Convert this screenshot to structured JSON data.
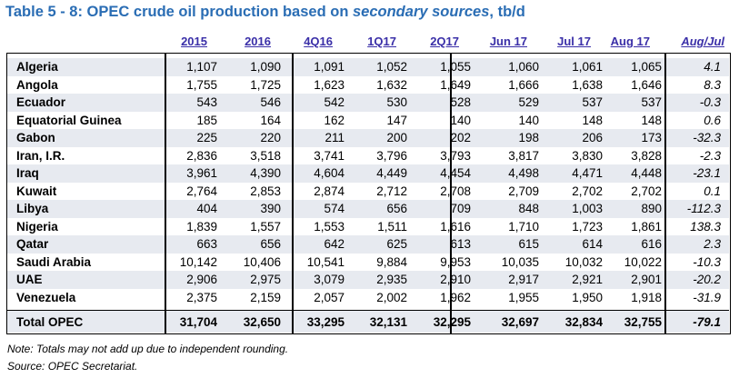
{
  "title": {
    "prefix": "Table 5 - 8: OPEC crude oil production based on ",
    "emph": "secondary sources",
    "suffix": ", tb/d"
  },
  "columns": [
    "2015",
    "2016",
    "4Q16",
    "1Q17",
    "2Q17",
    "Jun 17",
    "Jul 17",
    "Aug 17",
    "Aug/Jul"
  ],
  "rows": [
    {
      "country": "Algeria",
      "values": [
        "1,107",
        "1,090",
        "1,091",
        "1,052",
        "1,055",
        "1,060",
        "1,061",
        "1,065"
      ],
      "change": "4.1"
    },
    {
      "country": "Angola",
      "values": [
        "1,755",
        "1,725",
        "1,623",
        "1,632",
        "1,649",
        "1,666",
        "1,638",
        "1,646"
      ],
      "change": "8.3"
    },
    {
      "country": "Ecuador",
      "values": [
        "543",
        "546",
        "542",
        "530",
        "528",
        "529",
        "537",
        "537"
      ],
      "change": "-0.3"
    },
    {
      "country": "Equatorial Guinea",
      "values": [
        "185",
        "164",
        "162",
        "147",
        "140",
        "140",
        "148",
        "148"
      ],
      "change": "0.6"
    },
    {
      "country": "Gabon",
      "values": [
        "225",
        "220",
        "211",
        "200",
        "202",
        "198",
        "206",
        "173"
      ],
      "change": "-32.3"
    },
    {
      "country": "Iran, I.R.",
      "values": [
        "2,836",
        "3,518",
        "3,741",
        "3,796",
        "3,793",
        "3,817",
        "3,830",
        "3,828"
      ],
      "change": "-2.3"
    },
    {
      "country": "Iraq",
      "values": [
        "3,961",
        "4,390",
        "4,604",
        "4,449",
        "4,454",
        "4,498",
        "4,471",
        "4,448"
      ],
      "change": "-23.1"
    },
    {
      "country": "Kuwait",
      "values": [
        "2,764",
        "2,853",
        "2,874",
        "2,712",
        "2,708",
        "2,709",
        "2,702",
        "2,702"
      ],
      "change": "0.1"
    },
    {
      "country": "Libya",
      "values": [
        "404",
        "390",
        "574",
        "656",
        "709",
        "848",
        "1,003",
        "890"
      ],
      "change": "-112.3"
    },
    {
      "country": "Nigeria",
      "values": [
        "1,839",
        "1,557",
        "1,553",
        "1,511",
        "1,616",
        "1,710",
        "1,723",
        "1,861"
      ],
      "change": "138.3"
    },
    {
      "country": "Qatar",
      "values": [
        "663",
        "656",
        "642",
        "625",
        "613",
        "615",
        "614",
        "616"
      ],
      "change": "2.3"
    },
    {
      "country": "Saudi Arabia",
      "values": [
        "10,142",
        "10,406",
        "10,541",
        "9,884",
        "9,953",
        "10,035",
        "10,032",
        "10,022"
      ],
      "change": "-10.3"
    },
    {
      "country": "UAE",
      "values": [
        "2,906",
        "2,975",
        "3,079",
        "2,935",
        "2,910",
        "2,917",
        "2,921",
        "2,901"
      ],
      "change": "-20.2"
    },
    {
      "country": "Venezuela",
      "values": [
        "2,375",
        "2,159",
        "2,057",
        "2,002",
        "1,962",
        "1,955",
        "1,950",
        "1,918"
      ],
      "change": "-31.9"
    }
  ],
  "total": {
    "label": "Total  OPEC",
    "values": [
      "31,704",
      "32,650",
      "33,295",
      "32,131",
      "32,295",
      "32,697",
      "32,834",
      "32,755"
    ],
    "change": "-79.1"
  },
  "notes": [
    "Note: Totals may not add up due to independent rounding.",
    "Source: OPEC Secretariat."
  ],
  "colors": {
    "title": "#2a6db4",
    "header": "#3a2fa8",
    "shade": "#e7eaf0"
  }
}
